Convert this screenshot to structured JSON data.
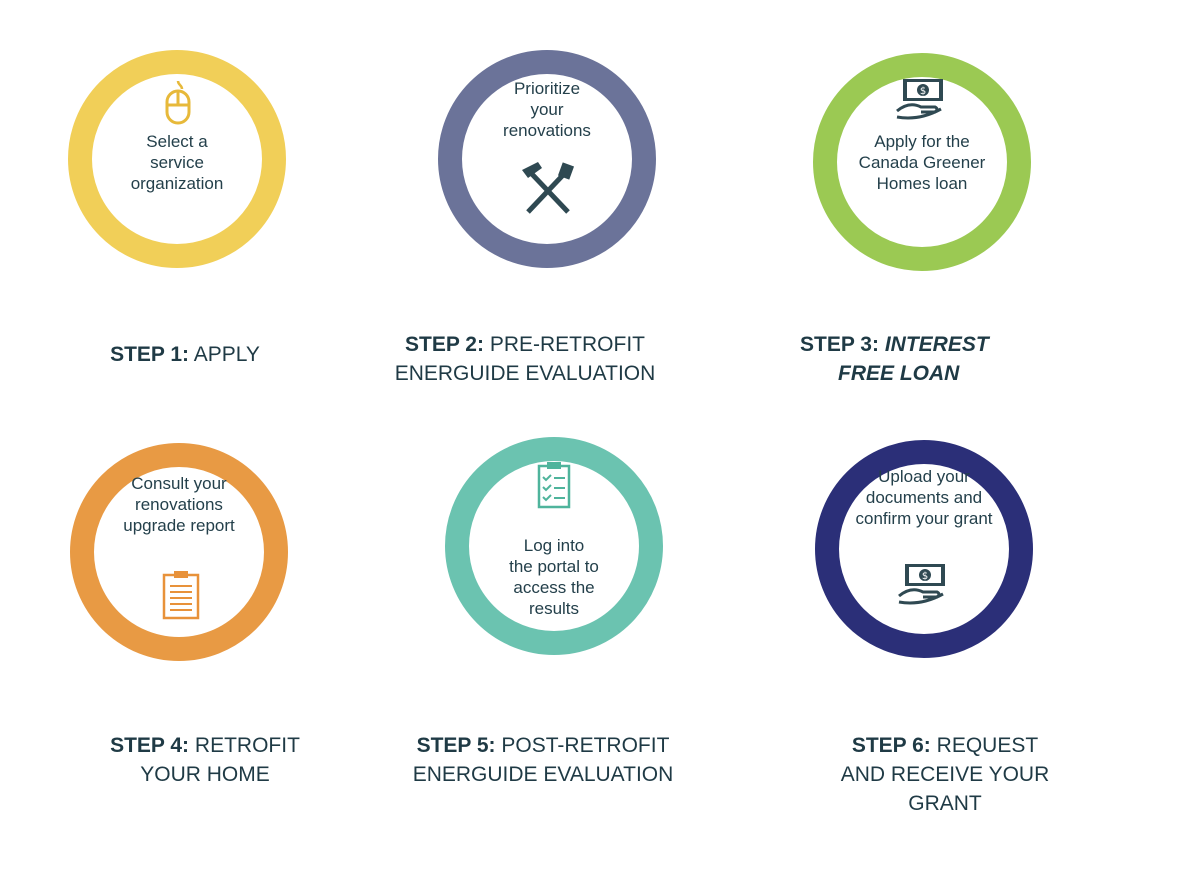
{
  "colors": {
    "step1": "#f1cf58",
    "step2": "#6b7399",
    "step3": "#9bc953",
    "step4": "#e89a44",
    "step5": "#6bc3b0",
    "step6": "#2b2f78",
    "text": "#1f3a45"
  },
  "steps": [
    {
      "circle_text": "Select a\nservice\norganization",
      "icon": "computer-mouse-icon",
      "step_prefix": "STEP 1:",
      "title_line1": "APPLY",
      "title_line2": ""
    },
    {
      "circle_text": "Prioritize\nyour\nrenovations",
      "icon": "hammer-and-saw-icon",
      "step_prefix": "STEP 2:",
      "title_line1": "PRE-RETROFIT",
      "title_line2": "ENERGUIDE EVALUATION"
    },
    {
      "circle_text": "Apply for the\nCanada Greener\nHomes loan",
      "icon": "money-in-hand-icon",
      "step_prefix": "STEP 3:",
      "title_line1": "INTEREST",
      "title_line2": "FREE LOAN"
    },
    {
      "circle_text": "Consult your\nrenovations\nupgrade report",
      "icon": "clipboard-report-icon",
      "step_prefix": "STEP 4:",
      "title_line1": "RETROFIT",
      "title_line2": "YOUR HOME"
    },
    {
      "circle_text": "Log into\nthe portal to\naccess the\nresults",
      "icon": "checklist-clipboard-icon",
      "step_prefix": "STEP 5:",
      "title_line1": "POST-RETROFIT",
      "title_line2": "ENERGUIDE EVALUATION"
    },
    {
      "circle_text": "Upload your\ndocuments and\nconfirm your grant",
      "icon": "money-in-hand-icon",
      "step_prefix": "STEP 6:",
      "title_line1": "REQUEST",
      "title_line2": "AND RECEIVE YOUR",
      "title_line3": "GRANT"
    }
  ]
}
